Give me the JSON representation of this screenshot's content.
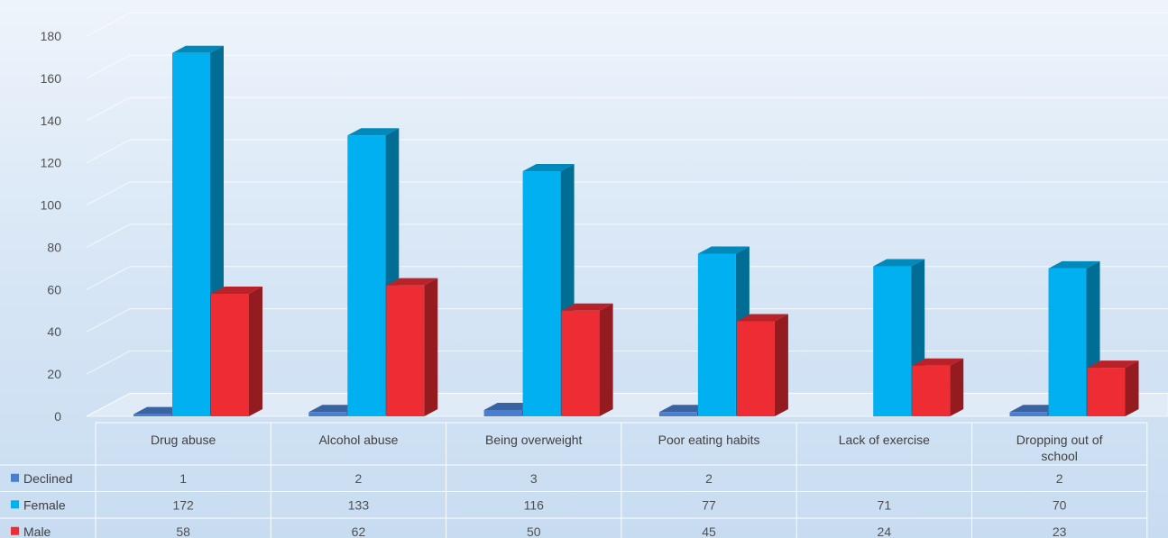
{
  "chart_data": {
    "type": "bar",
    "title": "",
    "xlabel": "",
    "ylabel": "",
    "ylim": [
      0,
      180
    ],
    "yticks": [
      0,
      20,
      40,
      60,
      80,
      100,
      120,
      140,
      160,
      180
    ],
    "grid": true,
    "style": "3d-clustered-column-with-data-table",
    "categories": [
      [
        "Drug abuse"
      ],
      [
        "Alcohol abuse"
      ],
      [
        "Being overweight"
      ],
      [
        "Poor eating habits"
      ],
      [
        "Lack of exercise"
      ],
      [
        "Dropping out of",
        "school"
      ]
    ],
    "series": [
      {
        "name": "Declined",
        "color": "#4a7fd0",
        "values": [
          1,
          2,
          3,
          2,
          null,
          2
        ]
      },
      {
        "name": "Female",
        "color": "#00b0f0",
        "values": [
          172,
          133,
          116,
          77,
          71,
          70
        ]
      },
      {
        "name": "Male",
        "color": "#ee2c34",
        "values": [
          58,
          62,
          50,
          45,
          24,
          23
        ]
      }
    ]
  }
}
